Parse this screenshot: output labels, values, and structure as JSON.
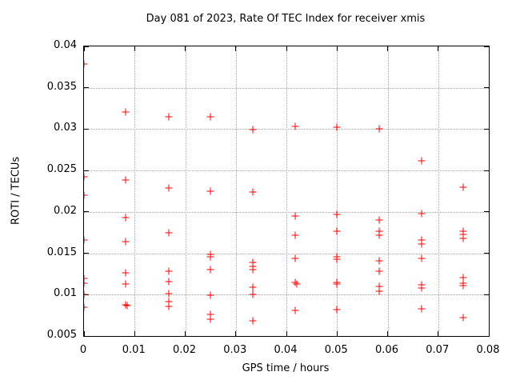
{
  "window": {
    "background": "#ffffff",
    "text_color": "#000000"
  },
  "chart_data": {
    "type": "scatter",
    "title": "Day 081 of 2023, Rate Of TEC Index for receiver xmis",
    "xlabel": "GPS time / hours",
    "ylabel": "ROTI / TECUs",
    "xlim": [
      0,
      0.08
    ],
    "ylim": [
      0.005,
      0.04
    ],
    "xticks": [
      0,
      0.01,
      0.02,
      0.03,
      0.04,
      0.05,
      0.06,
      0.07,
      0.08
    ],
    "xtick_labels": [
      "0",
      "0.01",
      "0.02",
      "0.03",
      "0.04",
      "0.05",
      "0.06",
      "0.07",
      "0.08"
    ],
    "yticks": [
      0.005,
      0.01,
      0.015,
      0.02,
      0.025,
      0.03,
      0.035,
      0.04
    ],
    "ytick_labels": [
      "0.005",
      "0.01",
      "0.015",
      "0.02",
      "0.025",
      "0.03",
      "0.035",
      "0.04"
    ],
    "grid": true,
    "grid_style": "dotted",
    "grid_color": "#a4a4a4",
    "axis_color": "#000000",
    "legend": "none",
    "marker": "plus",
    "marker_color": "#ff0000",
    "series": [
      {
        "name": "ROTI",
        "points": [
          [
            0,
            0.0379
          ],
          [
            0,
            0.0242
          ],
          [
            0,
            0.022
          ],
          [
            0,
            0.0166
          ],
          [
            0,
            0.012
          ],
          [
            0,
            0.0114
          ],
          [
            0,
            0.01
          ],
          [
            0,
            0.0085
          ],
          [
            0.0083,
            0.0321
          ],
          [
            0.0083,
            0.0239
          ],
          [
            0.0083,
            0.0193
          ],
          [
            0.0083,
            0.0164
          ],
          [
            0.0083,
            0.0126
          ],
          [
            0.0083,
            0.0113
          ],
          [
            0.0083,
            0.0088
          ],
          [
            0.0086,
            0.0087
          ],
          [
            0.0167,
            0.0315
          ],
          [
            0.0167,
            0.0229
          ],
          [
            0.0167,
            0.0175
          ],
          [
            0.0167,
            0.0128
          ],
          [
            0.0167,
            0.0116
          ],
          [
            0.0167,
            0.0101
          ],
          [
            0.0167,
            0.0092
          ],
          [
            0.0167,
            0.0086
          ],
          [
            0.025,
            0.0315
          ],
          [
            0.025,
            0.0225
          ],
          [
            0.025,
            0.0149
          ],
          [
            0.025,
            0.0146
          ],
          [
            0.025,
            0.013
          ],
          [
            0.025,
            0.0099
          ],
          [
            0.025,
            0.0076
          ],
          [
            0.025,
            0.007
          ],
          [
            0.0333,
            0.0299
          ],
          [
            0.0333,
            0.0224
          ],
          [
            0.0333,
            0.0139
          ],
          [
            0.0333,
            0.0134
          ],
          [
            0.0333,
            0.013
          ],
          [
            0.0333,
            0.0109
          ],
          [
            0.0333,
            0.01
          ],
          [
            0.0333,
            0.0068
          ],
          [
            0.0417,
            0.0303
          ],
          [
            0.0417,
            0.0195
          ],
          [
            0.0417,
            0.0172
          ],
          [
            0.0417,
            0.0144
          ],
          [
            0.0417,
            0.0115
          ],
          [
            0.042,
            0.0113
          ],
          [
            0.0417,
            0.0081
          ],
          [
            0.05,
            0.0302
          ],
          [
            0.05,
            0.0197
          ],
          [
            0.05,
            0.0177
          ],
          [
            0.05,
            0.0146
          ],
          [
            0.05,
            0.0143
          ],
          [
            0.05,
            0.0115
          ],
          [
            0.05,
            0.0113
          ],
          [
            0.05,
            0.0082
          ],
          [
            0.0583,
            0.03
          ],
          [
            0.0583,
            0.019
          ],
          [
            0.0583,
            0.0177
          ],
          [
            0.0583,
            0.0172
          ],
          [
            0.0583,
            0.0141
          ],
          [
            0.0583,
            0.0128
          ],
          [
            0.0583,
            0.011
          ],
          [
            0.0583,
            0.0104
          ],
          [
            0.0667,
            0.0262
          ],
          [
            0.0667,
            0.0198
          ],
          [
            0.0667,
            0.0166
          ],
          [
            0.0667,
            0.0161
          ],
          [
            0.0667,
            0.0144
          ],
          [
            0.0667,
            0.0112
          ],
          [
            0.0667,
            0.0108
          ],
          [
            0.0667,
            0.0083
          ],
          [
            0.075,
            0.023
          ],
          [
            0.075,
            0.0177
          ],
          [
            0.075,
            0.0173
          ],
          [
            0.075,
            0.0168
          ],
          [
            0.075,
            0.0121
          ],
          [
            0.075,
            0.0114
          ],
          [
            0.075,
            0.0111
          ],
          [
            0.075,
            0.0072
          ]
        ]
      }
    ]
  }
}
